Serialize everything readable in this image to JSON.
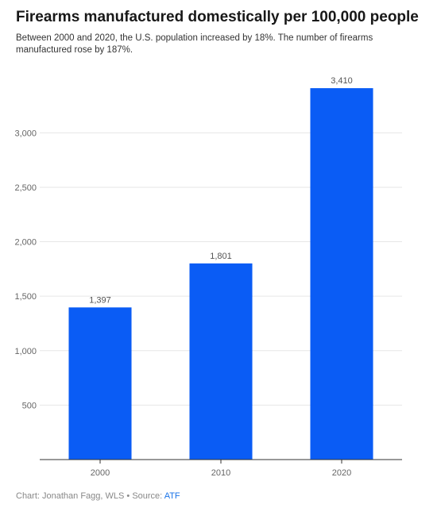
{
  "chart_data": {
    "type": "bar",
    "title": "Firearms manufactured domestically per 100,000 people",
    "subtitle": "Between 2000 and 2020, the U.S. population increased by 18%. The number of firearms manufactured rose by 187%.",
    "categories": [
      "2000",
      "2010",
      "2020"
    ],
    "values": [
      1397,
      1801,
      3410
    ],
    "value_labels": [
      "1,397",
      "1,801",
      "3,410"
    ],
    "y_ticks": [
      500,
      1000,
      1500,
      2000,
      2500,
      3000
    ],
    "y_tick_labels": [
      "500",
      "1,000",
      "1,500",
      "2,000",
      "2,500",
      "3,000"
    ],
    "ylim": [
      0,
      3600
    ],
    "xlabel": "",
    "ylabel": "",
    "grid": true,
    "bar_color": "#0a5cf5"
  },
  "footer": {
    "credit": "Chart: Jonathan Fagg, WLS • Source: ",
    "source": "ATF"
  },
  "colors": {
    "link": "#1a73e8",
    "gridline": "#e6e6e6",
    "axis": "#333333"
  }
}
